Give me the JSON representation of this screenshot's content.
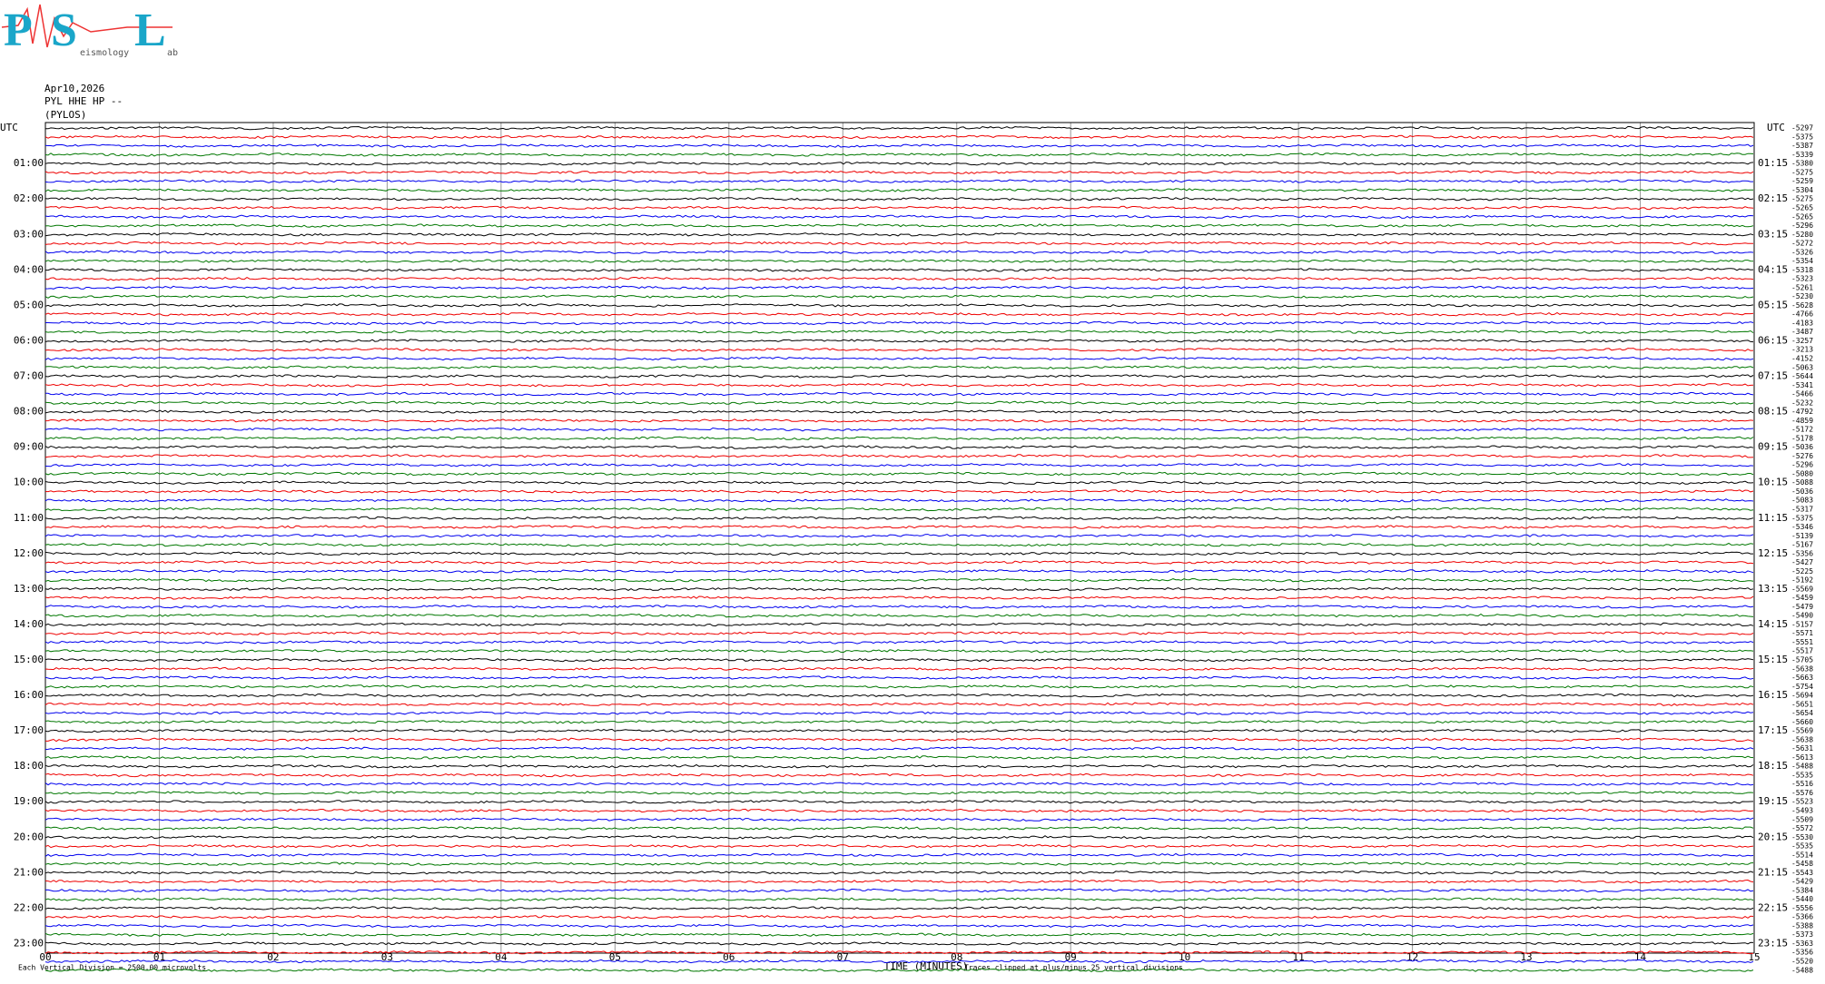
{
  "header": {
    "logo": {
      "letters": [
        "P",
        "S",
        "L"
      ],
      "sub1": "eismology",
      "sub2": "ab"
    },
    "date": "Apr10,2026",
    "station": "PYL HHE HP --",
    "location": "(PYLOS)"
  },
  "left_labels": [
    "UTC",
    "01:00",
    "02:00",
    "03:00",
    "04:00",
    "05:00",
    "06:00",
    "07:00",
    "08:00",
    "09:00",
    "10:00",
    "11:00",
    "12:00",
    "13:00",
    "14:00",
    "15:00",
    "16:00",
    "17:00",
    "18:00",
    "19:00",
    "20:00",
    "21:00",
    "22:00",
    "23:00"
  ],
  "right_labels": [
    "UTC",
    "01:15",
    "02:15",
    "03:15",
    "04:15",
    "05:15",
    "06:15",
    "07:15",
    "08:15",
    "09:15",
    "10:15",
    "11:15",
    "12:15",
    "13:15",
    "14:15",
    "15:15",
    "16:15",
    "17:15",
    "18:15",
    "19:15",
    "20:15",
    "21:15",
    "22:15",
    "23:15"
  ],
  "row_offsets": [
    -5297,
    -5375,
    -5387,
    -5339,
    -5380,
    -5275,
    -5259,
    -5304,
    -5275,
    -5265,
    -5265,
    -5296,
    -5280,
    -5272,
    -5326,
    -5354,
    -5318,
    -5323,
    -5261,
    -5230,
    -5628,
    -4766,
    -4183,
    -3487,
    -3257,
    -3213,
    -4152,
    -5063,
    -5644,
    -5341,
    -5466,
    -5232,
    -4792,
    -4859,
    -5172,
    -5178,
    -5036,
    -5276,
    -5296,
    -5080,
    -5088,
    -5036,
    -5083,
    -5317,
    -5375,
    -5346,
    -5139,
    -5167,
    -5356,
    -5427,
    -5225,
    -5192,
    -5569,
    -5459,
    -5479,
    -5490,
    -5157,
    -5571,
    -5551,
    -5517,
    -5705,
    -5638,
    -5663,
    -5754,
    -5694,
    -5651,
    -5654,
    -5660,
    -5569,
    -5638,
    -5631,
    -5613,
    -5488,
    -5535,
    -5516,
    -5576,
    -5523,
    -5493,
    -5509,
    -5572,
    -5530,
    -5535,
    -5514,
    -5458,
    -5543,
    -5429,
    -5384,
    -5440,
    -5556,
    -5366,
    -5388,
    -5373,
    -5363,
    -5356,
    -5520,
    -5488
  ],
  "x_ticks": [
    "00",
    "01",
    "02",
    "03",
    "04",
    "05",
    "06",
    "07",
    "08",
    "09",
    "10",
    "11",
    "12",
    "13",
    "14",
    "15"
  ],
  "footer": {
    "scale_note": "Each Vertical Division = 2500.00 microvolts",
    "x_label": "TIME (MINUTES)",
    "clip_note": "Traces clipped at plus/minus 25 vertical divisions"
  }
}
